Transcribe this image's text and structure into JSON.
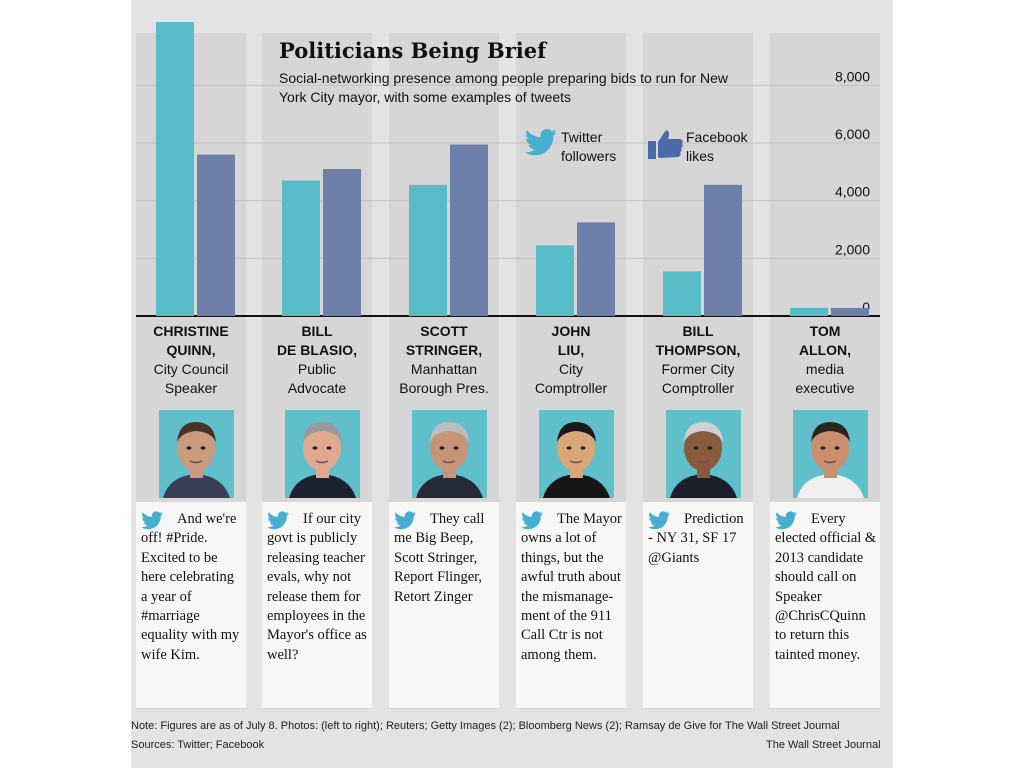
{
  "title": "Politicians Being Brief",
  "subtitle": "Social-networking presence among people preparing bids to run for New York City mayor, with some examples of tweets",
  "legend": {
    "twitter": "Twitter\nfollowers",
    "facebook": "Facebook\nlikes"
  },
  "colors": {
    "twitter": "#58bcc8",
    "facebook": "#6e80aa",
    "column": "#d6d6d6",
    "panel": "#e3e3e3"
  },
  "chart_data": {
    "type": "bar",
    "title": "Politicians Being Brief",
    "categories": [
      "CHRISTINE QUINN",
      "BILL DE BLASIO",
      "SCOTT STRINGER",
      "JOHN LIU",
      "BILL THOMPSON",
      "TOM ALLON"
    ],
    "series": [
      {
        "name": "Twitter followers",
        "values": [
          10200,
          4700,
          4550,
          2450,
          1550,
          280
        ]
      },
      {
        "name": "Facebook likes",
        "values": [
          5600,
          5100,
          5950,
          3250,
          4550,
          280
        ]
      }
    ],
    "yticks": [
      "8,000",
      "6,000",
      "4,000",
      "2,000",
      "0"
    ],
    "ytick_values": [
      8000,
      6000,
      4000,
      2000,
      0
    ],
    "ylim": [
      0,
      10200
    ],
    "grid": true,
    "legend_position": "top"
  },
  "candidates": [
    {
      "name": "CHRISTINE\nQUINN,",
      "role": "City Council\nSpeaker",
      "photo": "portrait-christine-quinn",
      "tweet": "And we're off! #Pride. Excited to be here celebrating a year of #marriage equality with my wife Kim."
    },
    {
      "name": "BILL\nDE BLASIO,",
      "role": "Public\nAdvocate",
      "photo": "portrait-bill-de-blasio",
      "tweet": "If our city govt is publicly releasing teacher evals, why not release them for employees in the Mayor's office as well?"
    },
    {
      "name": "SCOTT\nSTRINGER,",
      "role": "Manhattan\nBorough Pres.",
      "photo": "portrait-scott-stringer",
      "tweet": "They call me Big Beep, Scott Stringer, Report Flinger, Retort Zinger"
    },
    {
      "name": "JOHN\nLIU,",
      "role": "City\nComptroller",
      "photo": "portrait-john-liu",
      "tweet": "The Mayor owns a lot of things, but the awful truth about the mismanage-ment of the 911 Call Ctr is not among them."
    },
    {
      "name": "BILL\nTHOMPSON,",
      "role": "Former City\nComptroller",
      "photo": "portrait-bill-thompson",
      "tweet": "Prediction - NY 31, SF 17 @Giants"
    },
    {
      "name": "TOM\nALLON,",
      "role": "media\nexecutive",
      "photo": "portrait-tom-allon",
      "tweet": "Every elected official & 2013 candidate should call on Speaker @ChrisCQuinn to return this tainted money."
    }
  ],
  "note": "Note: Figures are as of July 8.   Photos: (left to right); Reuters; Getty Images (2); Bloomberg News (2); Ramsay de Give for The Wall Street Journal",
  "sources": "Sources: Twitter; Facebook",
  "credit": "The Wall Street Journal"
}
